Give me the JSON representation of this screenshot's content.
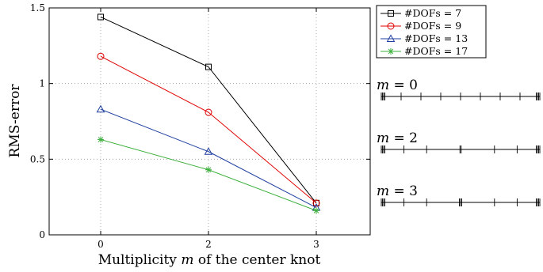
{
  "chart_data": {
    "type": "line",
    "xlabel": "Multiplicity m of the center knot",
    "xlabel_parts": [
      "Multiplicity ",
      "m",
      " of the center knot"
    ],
    "ylabel": "RMS-error",
    "x_categories": [
      "0",
      "2",
      "3"
    ],
    "ylim": [
      0,
      1.5
    ],
    "yticks": [
      0,
      0.5,
      1,
      1.5
    ],
    "ytick_labels": [
      "0",
      "0.5",
      "1",
      "1.5"
    ],
    "grid": true,
    "legend_position": "outside top-right",
    "series": [
      {
        "name": "#DOFs = 7",
        "color": "#000000",
        "marker": "square",
        "values": [
          1.44,
          1.11,
          0.21
        ]
      },
      {
        "name": "#DOFs = 9",
        "color": "#e00000",
        "marker": "circle",
        "values": [
          1.18,
          0.81,
          0.21
        ]
      },
      {
        "name": "#DOFs = 13",
        "color": "#1f3fa0",
        "marker": "triangle",
        "values": [
          0.83,
          0.55,
          0.18
        ]
      },
      {
        "name": "#DOFs = 17",
        "color": "#3fb03f",
        "marker": "star",
        "values": [
          0.63,
          0.43,
          0.16
        ]
      }
    ]
  },
  "knot_diagrams": [
    {
      "label_var": "m",
      "label_rest": " = 0",
      "knots": [
        0,
        0.125,
        0.25,
        0.375,
        0.5,
        0.625,
        0.75,
        0.875,
        1
      ],
      "multiplicity": [
        4,
        1,
        1,
        1,
        1,
        1,
        1,
        1,
        4
      ]
    },
    {
      "label_var": "m",
      "label_rest": " = 2",
      "knots": [
        0,
        0.143,
        0.286,
        0.5,
        0.714,
        0.857,
        1
      ],
      "multiplicity": [
        4,
        1,
        1,
        2,
        1,
        1,
        4
      ]
    },
    {
      "label_var": "m",
      "label_rest": " = 3",
      "knots": [
        0,
        0.143,
        0.286,
        0.5,
        0.714,
        0.857,
        1
      ],
      "multiplicity": [
        4,
        1,
        1,
        3,
        1,
        1,
        4
      ]
    }
  ]
}
